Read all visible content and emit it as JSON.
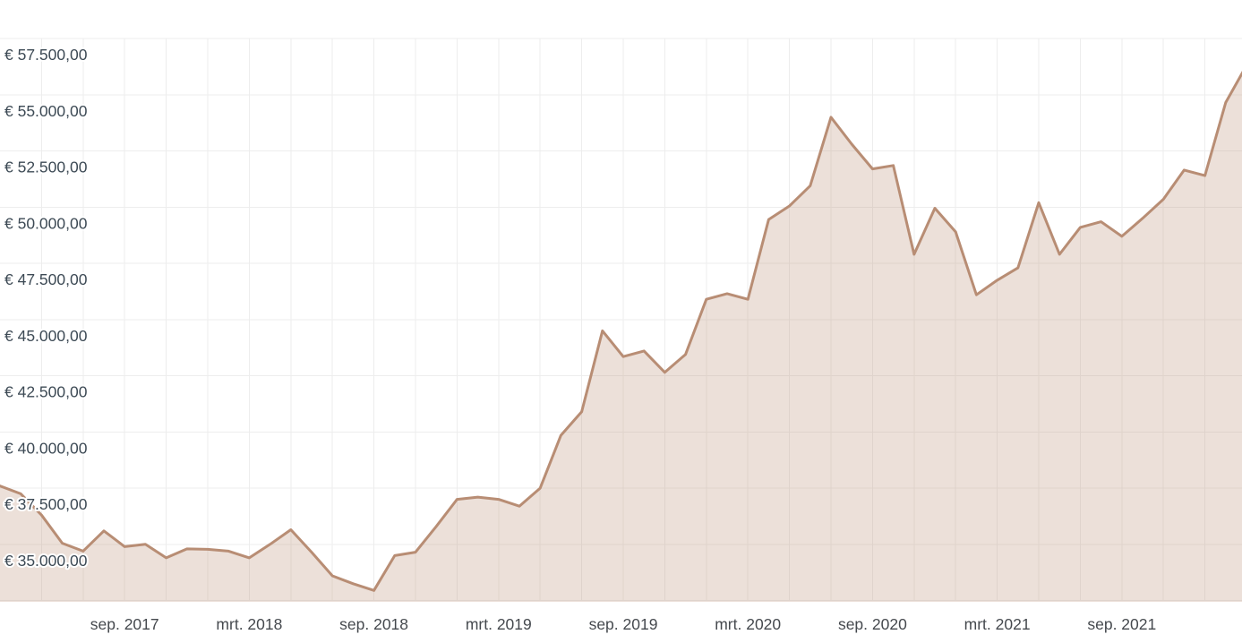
{
  "chart_data": {
    "type": "area",
    "title": "",
    "xlabel": "",
    "ylabel": "",
    "currency": "EUR",
    "grid": "on",
    "legend": "none",
    "months": [
      "2017-03",
      "2017-04",
      "2017-05",
      "2017-06",
      "2017-07",
      "2017-08",
      "2017-09",
      "2017-10",
      "2017-11",
      "2017-12",
      "2018-01",
      "2018-02",
      "2018-03",
      "2018-04",
      "2018-05",
      "2018-06",
      "2018-07",
      "2018-08",
      "2018-09",
      "2018-10",
      "2018-11",
      "2018-12",
      "2019-01",
      "2019-02",
      "2019-03",
      "2019-04",
      "2019-05",
      "2019-06",
      "2019-07",
      "2019-08",
      "2019-09",
      "2019-10",
      "2019-11",
      "2019-12",
      "2020-01",
      "2020-02",
      "2020-03",
      "2020-04",
      "2020-05",
      "2020-06",
      "2020-07",
      "2020-08",
      "2020-09",
      "2020-10",
      "2020-11",
      "2020-12",
      "2021-01",
      "2021-02",
      "2021-03",
      "2021-04",
      "2021-05",
      "2021-06",
      "2021-07",
      "2021-08",
      "2021-09",
      "2021-10",
      "2021-11",
      "2021-12",
      "2022-01",
      "2022-02",
      "2022-03"
    ],
    "values": [
      37600,
      37250,
      36300,
      35050,
      34700,
      35600,
      34900,
      35000,
      34400,
      34800,
      34780,
      34700,
      34400,
      35000,
      35650,
      34650,
      33600,
      33250,
      32950,
      34500,
      34650,
      35800,
      37000,
      37100,
      37000,
      36700,
      37500,
      39850,
      40900,
      44500,
      43350,
      43600,
      42650,
      43450,
      45900,
      46150,
      45900,
      49450,
      50050,
      50950,
      54000,
      52800,
      51700,
      51850,
      47900,
      49950,
      48900,
      46100,
      46750,
      47300,
      50200,
      47900,
      49100,
      49350,
      48700,
      49500,
      50350,
      51650,
      51400,
      54650,
      56300
    ],
    "y_ticks": [
      {
        "value": 57500,
        "label": "€ 57.500,00"
      },
      {
        "value": 55000,
        "label": "€ 55.000,00"
      },
      {
        "value": 52500,
        "label": "€ 52.500,00"
      },
      {
        "value": 50000,
        "label": "€ 50.000,00"
      },
      {
        "value": 47500,
        "label": "€ 47.500,00"
      },
      {
        "value": 45000,
        "label": "€ 45.000,00"
      },
      {
        "value": 42500,
        "label": "€ 42.500,00"
      },
      {
        "value": 40000,
        "label": "€ 40.000,00"
      },
      {
        "value": 37500,
        "label": "€ 37.500,00"
      },
      {
        "value": 35000,
        "label": "€ 35.000,00"
      }
    ],
    "y_axis_bottom_value": 32500,
    "x_ticks": [
      {
        "month_index": 6,
        "label": "sep. 2017"
      },
      {
        "month_index": 12,
        "label": "mrt. 2018"
      },
      {
        "month_index": 18,
        "label": "sep. 2018"
      },
      {
        "month_index": 24,
        "label": "mrt. 2019"
      },
      {
        "month_index": 30,
        "label": "sep. 2019"
      },
      {
        "month_index": 36,
        "label": "mrt. 2020"
      },
      {
        "month_index": 42,
        "label": "sep. 2020"
      },
      {
        "month_index": 48,
        "label": "mrt. 2021"
      },
      {
        "month_index": 54,
        "label": "sep. 2021"
      }
    ],
    "vertical_gridline_every_n_months": 2,
    "colors": {
      "line": "#b88d74",
      "fill": "rgba(184,141,116,0.27)",
      "grid": "#ededed",
      "y_label": "#3d4a55",
      "x_label": "#45494e",
      "background": "#ffffff"
    }
  }
}
